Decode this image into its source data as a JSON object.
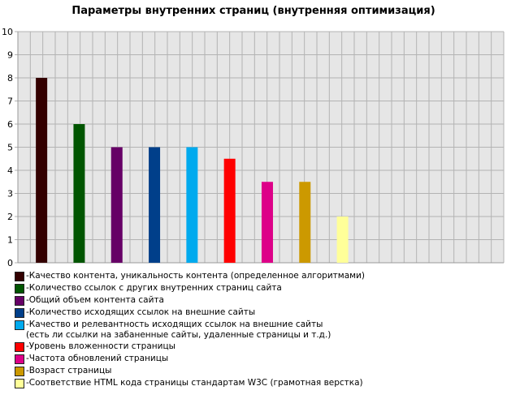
{
  "chart_data": {
    "type": "bar",
    "title": "Параметры внутренних страниц (внутренняя оптимизация)",
    "xlabel": "",
    "ylabel": "",
    "ylim": [
      0,
      10
    ],
    "yticks": [
      "0",
      "1",
      "2",
      "3",
      "4",
      "5",
      "6",
      "7",
      "8",
      "9",
      "10"
    ],
    "grid": true,
    "legend_position": "bottom-left",
    "categories": [
      "Качество контента, уникальность контента (определенное алгоритмами)",
      "Количество ссылок с других внутренних страниц сайта",
      "Общий объем контента сайта",
      "Количество исходящих ссылок на внешние сайты",
      "Качество и релевантность исходящих ссылок на внешние сайты\n(есть ли ссылки на забаненные сайты, удаленные страницы и т.д.)",
      "Уровень вложенности страницы",
      "Частота обновлений страницы",
      "Возраст страницы",
      "Соответствие HTML кода страницы стандартам W3C (грамотная верстка)"
    ],
    "values": [
      8,
      6,
      5,
      5,
      5,
      4.5,
      3.5,
      3.5,
      2
    ],
    "colors": [
      "#330000",
      "#005500",
      "#660066",
      "#003f8a",
      "#00aaee",
      "#ff0000",
      "#dd0088",
      "#cc9900",
      "#ffff99"
    ]
  }
}
